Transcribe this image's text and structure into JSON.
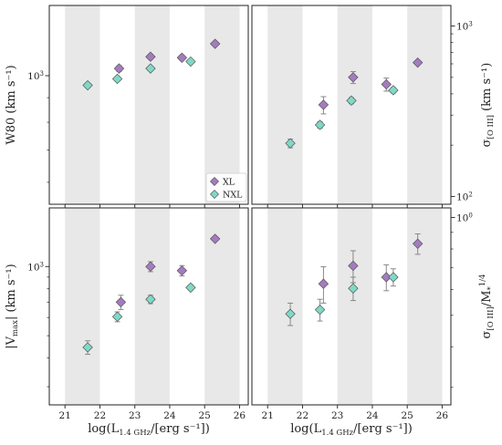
{
  "chart_data": {
    "type": "scatter",
    "shared_x": {
      "label": "log(L",
      "label_sub": "1.4 GHz",
      "label_tail": "/[erg s⁻¹])",
      "ticks": [
        21,
        22,
        23,
        24,
        25,
        26
      ],
      "lim": [
        20.55,
        26.25
      ],
      "shaded_bands": [
        [
          21,
          22
        ],
        [
          23,
          24
        ],
        [
          25,
          26
        ]
      ]
    },
    "legend": {
      "entries": [
        {
          "name": "XL",
          "color": "#a57bc0"
        },
        {
          "name": "NXL",
          "color": "#7fd9c6"
        }
      ],
      "placement": "lower-right of top-left panel"
    },
    "panels": [
      {
        "id": "top-left",
        "ylabel": "W80 (km s⁻¹)",
        "yaxis_side": "left",
        "yscale": "log",
        "ylim": [
          540,
          1400
        ],
        "major_ticks": [
          {
            "value": 1000,
            "base": "10",
            "exp": "3"
          }
        ],
        "series": [
          {
            "name": "XL",
            "color": "#a57bc0",
            "marker": "diamond",
            "x": [
              22.55,
              23.45,
              24.35,
              25.3
            ],
            "y": [
              1035,
              1095,
              1090,
              1165
            ],
            "yerr": [
              14,
              12,
              12,
              6
            ]
          },
          {
            "name": "NXL",
            "color": "#7fd9c6",
            "marker": "diamond",
            "x": [
              21.65,
              22.5,
              23.45,
              24.6
            ],
            "y": [
              955,
              985,
              1035,
              1070
            ],
            "yerr": [
              10,
              10,
              6,
              6
            ]
          }
        ]
      },
      {
        "id": "top-right",
        "ylabel": "σ",
        "ylabel_sub": "[O III]",
        "ylabel_tail": " (km s⁻¹)",
        "yaxis_side": "right",
        "yscale": "log",
        "ylim": [
          90,
          1320
        ],
        "major_ticks": [
          {
            "value": 100,
            "base": "10",
            "exp": "2"
          },
          {
            "value": 1000,
            "base": "10",
            "exp": "3"
          }
        ],
        "series": [
          {
            "name": "XL",
            "color": "#a57bc0",
            "marker": "diamond",
            "x": [
              22.6,
              23.45,
              24.4,
              25.3
            ],
            "y": [
              345,
              500,
              455,
              610
            ],
            "yerr": [
              40,
              40,
              40,
              15
            ]
          },
          {
            "name": "NXL",
            "color": "#7fd9c6",
            "marker": "diamond",
            "x": [
              21.65,
              22.5,
              23.4,
              24.6
            ],
            "y": [
              205,
              263,
              365,
              420
            ],
            "yerr": [
              12,
              12,
              15,
              15
            ]
          }
        ]
      },
      {
        "id": "bottom-left",
        "ylabel": "|V",
        "ylabel_sub": "max",
        "ylabel_tail": "| (km s⁻¹)",
        "yaxis_side": "left",
        "yscale": "log",
        "ylim": [
          250,
          1800
        ],
        "major_ticks": [
          {
            "value": 1000,
            "base": "10",
            "exp": "3"
          }
        ],
        "series": [
          {
            "name": "XL",
            "color": "#a57bc0",
            "marker": "diamond",
            "x": [
              22.6,
              23.45,
              24.35,
              25.3
            ],
            "y": [
              700,
              1000,
              960,
              1320
            ],
            "yerr": [
              50,
              50,
              50,
              20
            ]
          },
          {
            "name": "NXL",
            "color": "#7fd9c6",
            "marker": "diamond",
            "x": [
              21.65,
              22.5,
              23.45,
              24.6
            ],
            "y": [
              445,
              605,
              720,
              810
            ],
            "yerr": [
              30,
              30,
              30,
              20
            ]
          }
        ]
      },
      {
        "id": "bottom-right",
        "ylabel": "σ",
        "ylabel_sub": "[O III]",
        "ylabel_tail": "/M",
        "ylabel_tail_sub": "*",
        "ylabel_tail_sup": "1/4",
        "yaxis_side": "right",
        "yscale": "log",
        "ylim": [
          0.265,
          1.07
        ],
        "major_ticks": [
          {
            "value": 1.0,
            "base": "10",
            "exp": "0"
          }
        ],
        "series": [
          {
            "name": "XL",
            "color": "#a57bc0",
            "marker": "diamond",
            "x": [
              22.6,
              23.45,
              24.4,
              25.3
            ],
            "y": [
              0.625,
              0.71,
              0.655,
              0.83
            ],
            "yerr": [
              0.08,
              0.08,
              0.06,
              0.06
            ]
          },
          {
            "name": "NXL",
            "color": "#7fd9c6",
            "marker": "diamond",
            "x": [
              21.65,
              22.5,
              23.45,
              24.6
            ],
            "y": [
              0.505,
              0.52,
              0.605,
              0.655
            ],
            "yerr": [
              0.04,
              0.04,
              0.05,
              0.04
            ]
          }
        ]
      }
    ]
  }
}
